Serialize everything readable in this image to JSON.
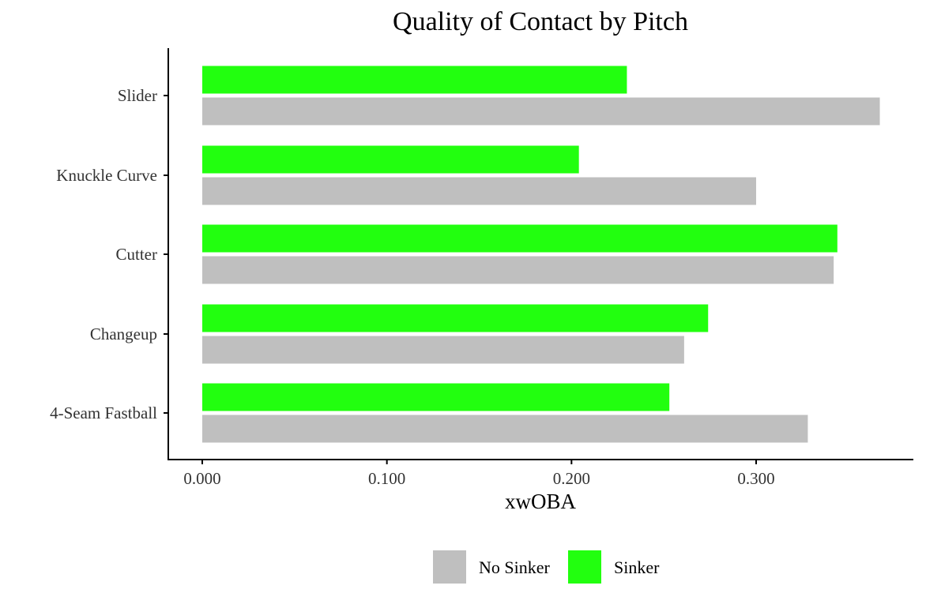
{
  "chart_data": {
    "type": "bar",
    "orientation": "horizontal",
    "title": "Quality of Contact by Pitch",
    "xlabel": "xwOBA",
    "ylabel": "",
    "categories": [
      "4-Seam Fastball",
      "Changeup",
      "Cutter",
      "Knuckle Curve",
      "Slider"
    ],
    "series": [
      {
        "name": "No Sinker",
        "color": "#bfbfbf",
        "values": [
          0.328,
          0.261,
          0.342,
          0.3,
          0.367
        ]
      },
      {
        "name": "Sinker",
        "color": "#22ff0f",
        "values": [
          0.253,
          0.274,
          0.344,
          0.204,
          0.23
        ]
      }
    ],
    "xlim": [
      0,
      0.37
    ],
    "xticks": [
      0,
      0.1,
      0.2,
      0.3
    ],
    "xtick_labels": [
      "0.000",
      "0.100",
      "0.200",
      "0.300"
    ],
    "grid": false,
    "legend_position": "bottom"
  }
}
